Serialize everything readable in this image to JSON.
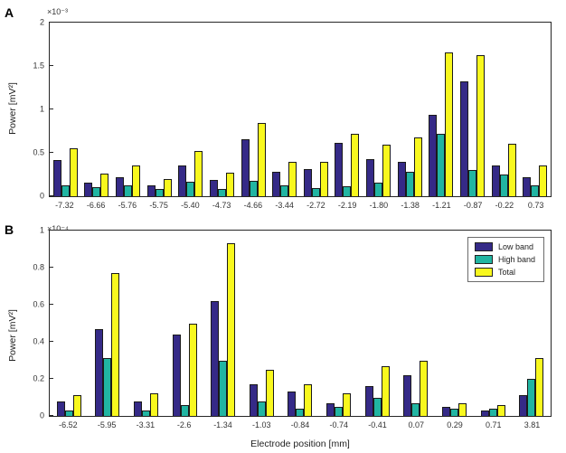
{
  "figure": {
    "xlabel": "Electrode position [mm]"
  },
  "legend": {
    "entries": [
      "Low band",
      "High band",
      "Total"
    ]
  },
  "chart_data": [
    {
      "type": "bar",
      "panel_label": "A",
      "exponent_label": "×10⁻³",
      "ylabel": "Power [mV²]",
      "xlabel": "",
      "ylim": [
        0,
        2
      ],
      "yticks": [
        0,
        0.5,
        1,
        1.5,
        2
      ],
      "grid": false,
      "legend_position": "none",
      "categories": [
        "-7.32",
        "-6.66",
        "-5.76",
        "-5.75",
        "-5.40",
        "-4.73",
        "-4.66",
        "-3.44",
        "-2.72",
        "-2.19",
        "-1.80",
        "-1.38",
        "-1.21",
        "-0.87",
        "-0.22",
        "0.73"
      ],
      "series": [
        {
          "name": "Low band",
          "color": "#352A87",
          "values": [
            0.42,
            0.16,
            0.22,
            0.12,
            0.35,
            0.19,
            0.66,
            0.28,
            0.31,
            0.61,
            0.43,
            0.4,
            0.94,
            1.32,
            0.35,
            0.22
          ]
        },
        {
          "name": "High band",
          "color": "#21B5A2",
          "values": [
            0.13,
            0.1,
            0.13,
            0.08,
            0.17,
            0.08,
            0.18,
            0.12,
            0.09,
            0.11,
            0.16,
            0.28,
            0.72,
            0.3,
            0.25,
            0.13
          ]
        },
        {
          "name": "Total",
          "color": "#F8F81E",
          "values": [
            0.55,
            0.26,
            0.35,
            0.2,
            0.52,
            0.27,
            0.84,
            0.4,
            0.4,
            0.72,
            0.59,
            0.68,
            1.66,
            1.62,
            0.6,
            0.35
          ]
        }
      ]
    },
    {
      "type": "bar",
      "panel_label": "B",
      "exponent_label": "×10⁻⁴",
      "ylabel": "Power [mV²]",
      "xlabel": "Electrode position [mm]",
      "ylim": [
        0,
        1
      ],
      "yticks": [
        0,
        0.2,
        0.4,
        0.6,
        0.8,
        1
      ],
      "grid": false,
      "legend_position": "northeast",
      "categories": [
        "-6.52",
        "-5.95",
        "-3.31",
        "-2.6",
        "-1.34",
        "-1.03",
        "-0.84",
        "-0.74",
        "-0.41",
        "0.07",
        "0.29",
        "0.71",
        "3.81"
      ],
      "series": [
        {
          "name": "Low band",
          "color": "#352A87",
          "values": [
            0.08,
            0.47,
            0.08,
            0.44,
            0.62,
            0.17,
            0.13,
            0.07,
            0.16,
            0.22,
            0.05,
            0.03,
            0.11
          ]
        },
        {
          "name": "High band",
          "color": "#21B5A2",
          "values": [
            0.03,
            0.31,
            0.03,
            0.06,
            0.3,
            0.08,
            0.04,
            0.05,
            0.1,
            0.07,
            0.04,
            0.04,
            0.2
          ]
        },
        {
          "name": "Total",
          "color": "#F8F81E",
          "values": [
            0.11,
            0.77,
            0.12,
            0.5,
            0.93,
            0.25,
            0.17,
            0.12,
            0.27,
            0.3,
            0.07,
            0.06,
            0.31
          ]
        }
      ]
    }
  ]
}
